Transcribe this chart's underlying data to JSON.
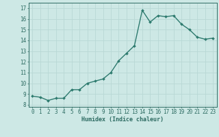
{
  "x": [
    0,
    1,
    2,
    3,
    4,
    5,
    6,
    7,
    8,
    9,
    10,
    11,
    12,
    13,
    14,
    15,
    16,
    17,
    18,
    19,
    20,
    21,
    22,
    23
  ],
  "y": [
    8.8,
    8.7,
    8.4,
    8.6,
    8.6,
    9.4,
    9.4,
    10.0,
    10.2,
    10.4,
    11.0,
    12.1,
    12.8,
    13.5,
    16.8,
    15.7,
    16.3,
    16.2,
    16.3,
    15.5,
    15.0,
    14.3,
    14.1,
    14.2
  ],
  "line_color": "#2d7a6e",
  "marker": "D",
  "marker_size": 2.0,
  "linewidth": 1.0,
  "bg_color": "#cde8e5",
  "grid_color": "#b8d8d5",
  "xlabel": "Humidex (Indice chaleur)",
  "xlabel_fontsize": 6.0,
  "tick_fontsize": 5.5,
  "xlim": [
    -0.5,
    23.5
  ],
  "ylim": [
    7.8,
    17.5
  ],
  "yticks": [
    8,
    9,
    10,
    11,
    12,
    13,
    14,
    15,
    16,
    17
  ],
  "xticks": [
    0,
    1,
    2,
    3,
    4,
    5,
    6,
    7,
    8,
    9,
    10,
    11,
    12,
    13,
    14,
    15,
    16,
    17,
    18,
    19,
    20,
    21,
    22,
    23
  ],
  "tick_color": "#2d6b62",
  "spine_color": "#2d6b62"
}
